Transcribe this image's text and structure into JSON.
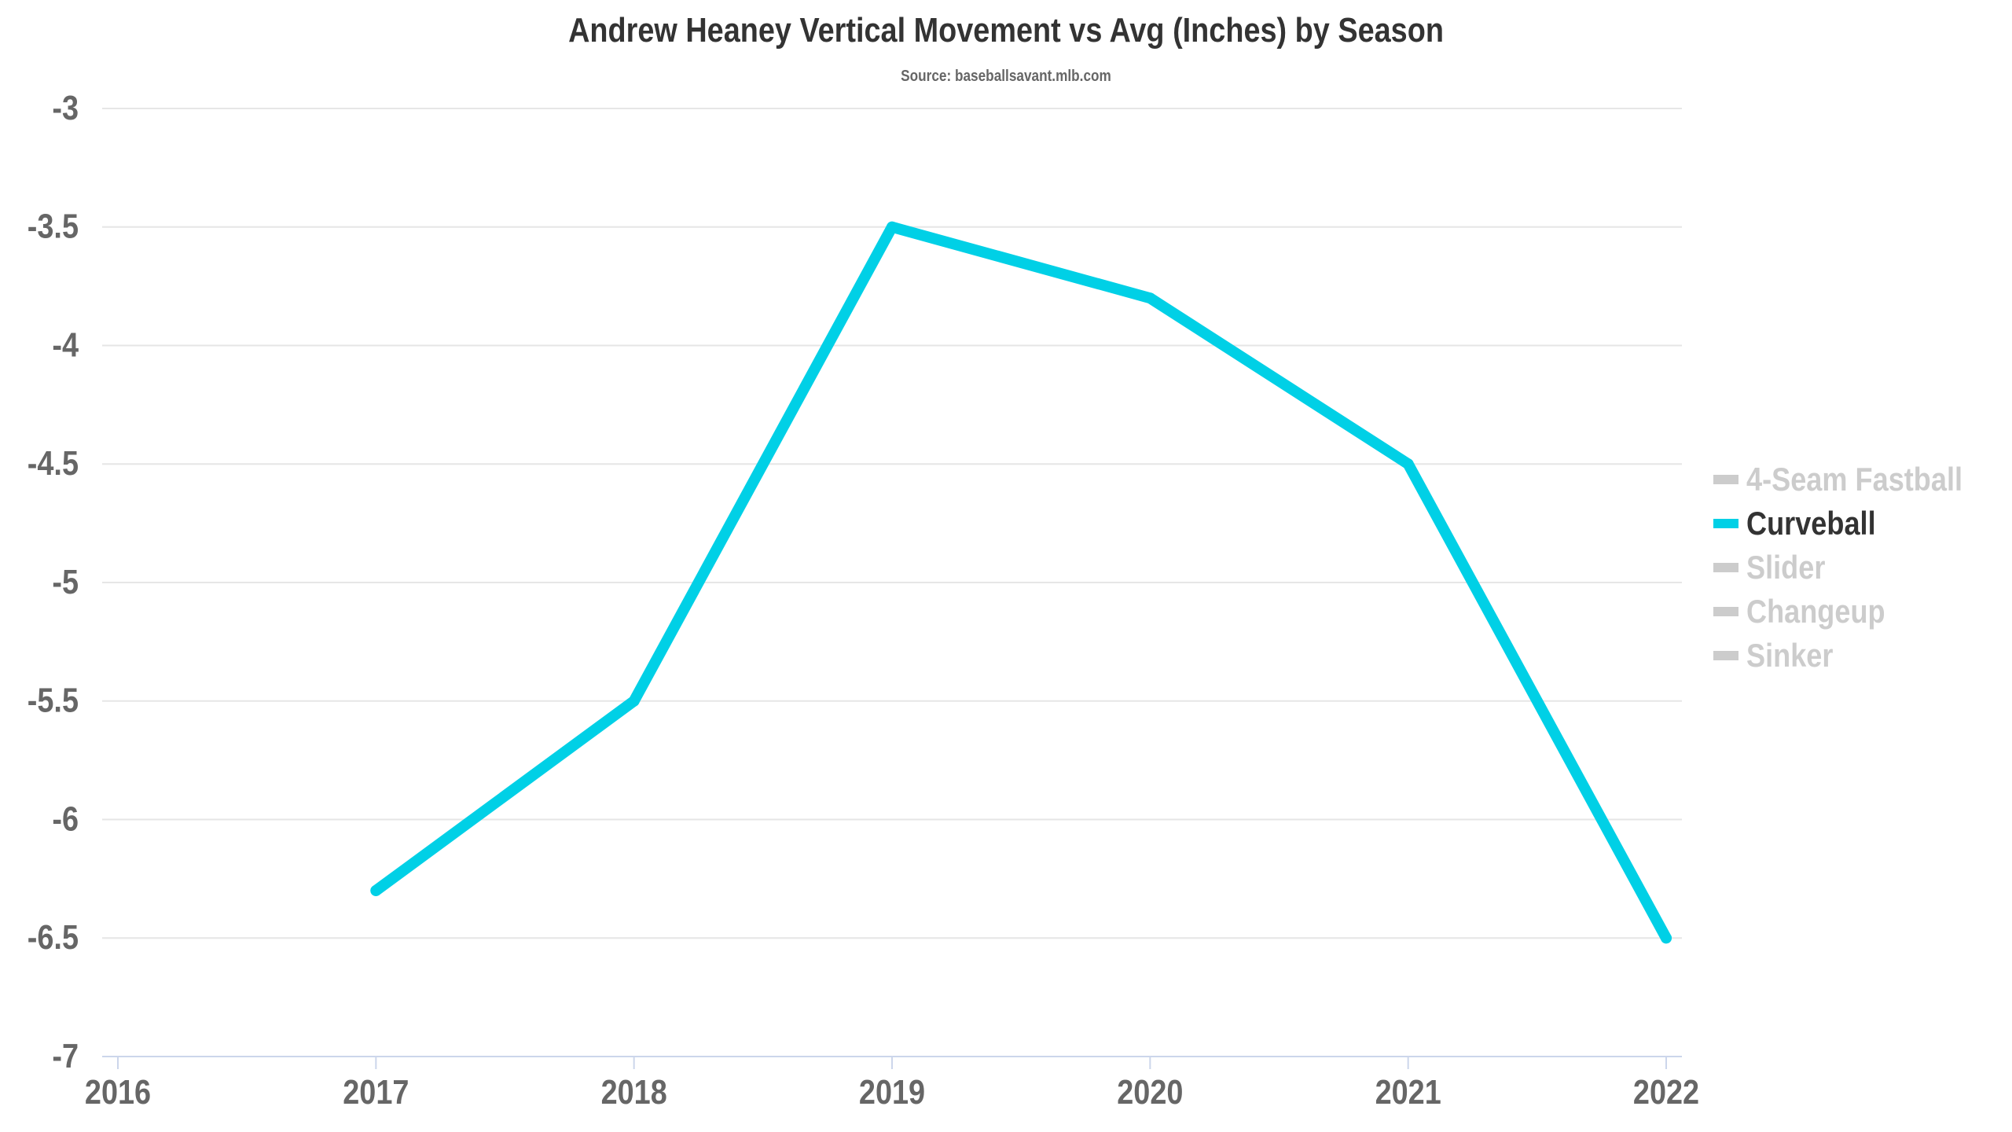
{
  "chart_data": {
    "type": "line",
    "title": "Andrew Heaney Vertical Movement vs Avg (Inches) by Season",
    "subtitle": "Source: baseballsavant.mlb.com",
    "xlabel": "",
    "ylabel": "",
    "x_ticks": [
      "2016",
      "2017",
      "2018",
      "2019",
      "2020",
      "2021",
      "2022"
    ],
    "xlim": [
      2016,
      2022
    ],
    "y_ticks": [
      "-3",
      "-3.5",
      "-4",
      "-4.5",
      "-5",
      "-5.5",
      "-6",
      "-6.5",
      "-7"
    ],
    "ylim": [
      -7,
      -3
    ],
    "grid": true,
    "legend_position": "right",
    "legend": [
      {
        "label": "4-Seam Fastball",
        "active": false
      },
      {
        "label": "Curveball",
        "active": true
      },
      {
        "label": "Slider",
        "active": false
      },
      {
        "label": "Changeup",
        "active": false
      },
      {
        "label": "Sinker",
        "active": false
      }
    ],
    "series": [
      {
        "name": "Curveball",
        "color": "#00d0e6",
        "x": [
          2017,
          2018,
          2019,
          2020,
          2021,
          2022
        ],
        "values": [
          -6.3,
          -5.5,
          -3.5,
          -3.8,
          -4.5,
          -6.5
        ]
      }
    ]
  },
  "colors": {
    "active_series": "#00d0e6",
    "inactive_legend": "#cccccc",
    "active_legend_text": "#333333",
    "grid": "#e6e6e6",
    "axis": "#ccd6eb",
    "tick_label": "#666666"
  }
}
